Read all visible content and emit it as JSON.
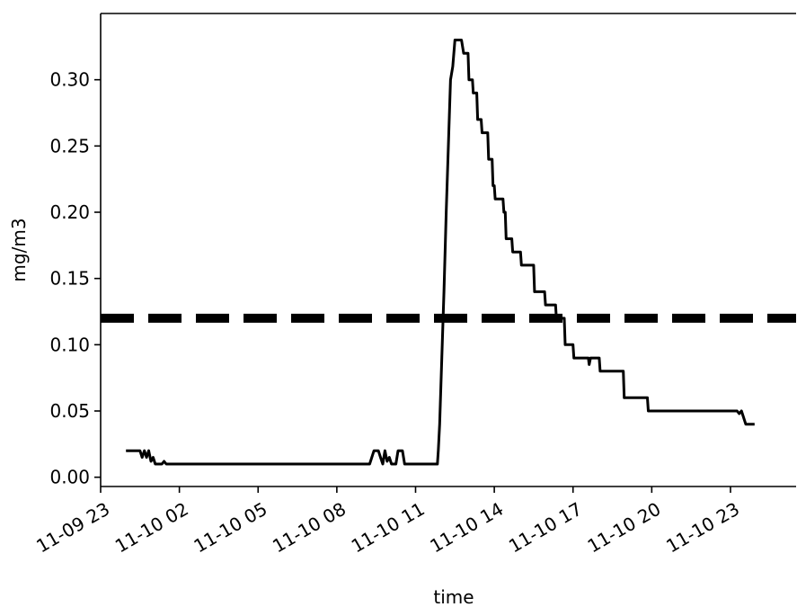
{
  "chart_data": {
    "type": "line",
    "title": "",
    "xlabel": "time",
    "ylabel": "mg/m3",
    "grid": false,
    "legend": "none",
    "x_start": "2023-11-09 23:00",
    "xlim": [
      "11-09 23",
      "11-10 25:30"
    ],
    "ylim": [
      -0.007,
      0.35
    ],
    "x_ticks": [
      "11-09 23",
      "11-10 02",
      "11-10 05",
      "11-10 08",
      "11-10 11",
      "11-10 14",
      "11-10 17",
      "11-10 20",
      "11-10 23"
    ],
    "y_ticks": [
      "0.00",
      "0.05",
      "0.10",
      "0.15",
      "0.20",
      "0.25",
      "0.30"
    ],
    "threshold": {
      "value": 0.12,
      "style": "dashed",
      "color": "#000000"
    },
    "series": [
      {
        "color": "#000000",
        "points": [
          [
            "11-09 23:58",
            0.02
          ],
          [
            "11-10 00:30",
            0.02
          ],
          [
            "11-10 00:35",
            0.015
          ],
          [
            "11-10 00:40",
            0.02
          ],
          [
            "11-10 00:45",
            0.015
          ],
          [
            "11-10 00:50",
            0.02
          ],
          [
            "11-10 00:55",
            0.012
          ],
          [
            "11-10 01:00",
            0.015
          ],
          [
            "11-10 01:05",
            0.01
          ],
          [
            "11-10 01:20",
            0.01
          ],
          [
            "11-10 01:25",
            0.012
          ],
          [
            "11-10 01:30",
            0.01
          ],
          [
            "11-10 09:15",
            0.01
          ],
          [
            "11-10 09:20",
            0.015
          ],
          [
            "11-10 09:25",
            0.02
          ],
          [
            "11-10 09:35",
            0.02
          ],
          [
            "11-10 09:40",
            0.015
          ],
          [
            "11-10 09:45",
            0.01
          ],
          [
            "11-10 09:50",
            0.02
          ],
          [
            "11-10 09:55",
            0.012
          ],
          [
            "11-10 10:00",
            0.015
          ],
          [
            "11-10 10:05",
            0.01
          ],
          [
            "11-10 10:15",
            0.01
          ],
          [
            "11-10 10:20",
            0.02
          ],
          [
            "11-10 10:30",
            0.02
          ],
          [
            "11-10 10:35",
            0.01
          ],
          [
            "11-10 11:50",
            0.01
          ],
          [
            "11-10 11:52",
            0.02
          ],
          [
            "11-10 11:55",
            0.04
          ],
          [
            "11-10 12:00",
            0.09
          ],
          [
            "11-10 12:05",
            0.14
          ],
          [
            "11-10 12:10",
            0.2
          ],
          [
            "11-10 12:15",
            0.25
          ],
          [
            "11-10 12:20",
            0.3
          ],
          [
            "11-10 12:25",
            0.31
          ],
          [
            "11-10 12:30",
            0.33
          ],
          [
            "11-10 12:45",
            0.33
          ],
          [
            "11-10 12:50",
            0.32
          ],
          [
            "11-10 13:00",
            0.32
          ],
          [
            "11-10 13:02",
            0.3
          ],
          [
            "11-10 13:10",
            0.3
          ],
          [
            "11-10 13:12",
            0.29
          ],
          [
            "11-10 13:20",
            0.29
          ],
          [
            "11-10 13:22",
            0.27
          ],
          [
            "11-10 13:30",
            0.27
          ],
          [
            "11-10 13:32",
            0.26
          ],
          [
            "11-10 13:45",
            0.26
          ],
          [
            "11-10 13:47",
            0.24
          ],
          [
            "11-10 13:55",
            0.24
          ],
          [
            "11-10 13:57",
            0.22
          ],
          [
            "11-10 14:00",
            0.22
          ],
          [
            "11-10 14:02",
            0.21
          ],
          [
            "11-10 14:20",
            0.21
          ],
          [
            "11-10 14:22",
            0.2
          ],
          [
            "11-10 14:25",
            0.2
          ],
          [
            "11-10 14:27",
            0.18
          ],
          [
            "11-10 14:40",
            0.18
          ],
          [
            "11-10 14:42",
            0.17
          ],
          [
            "11-10 15:00",
            0.17
          ],
          [
            "11-10 15:02",
            0.16
          ],
          [
            "11-10 15:30",
            0.16
          ],
          [
            "11-10 15:32",
            0.14
          ],
          [
            "11-10 15:55",
            0.14
          ],
          [
            "11-10 15:57",
            0.13
          ],
          [
            "11-10 16:20",
            0.13
          ],
          [
            "11-10 16:22",
            0.12
          ],
          [
            "11-10 16:40",
            0.12
          ],
          [
            "11-10 16:42",
            0.1
          ],
          [
            "11-10 17:00",
            0.1
          ],
          [
            "11-10 17:02",
            0.09
          ],
          [
            "11-10 17:35",
            0.09
          ],
          [
            "11-10 17:37",
            0.085
          ],
          [
            "11-10 17:40",
            0.09
          ],
          [
            "11-10 18:00",
            0.09
          ],
          [
            "11-10 18:02",
            0.08
          ],
          [
            "11-10 18:55",
            0.08
          ],
          [
            "11-10 18:57",
            0.06
          ],
          [
            "11-10 19:50",
            0.06
          ],
          [
            "11-10 19:52",
            0.05
          ],
          [
            "11-10 23:15",
            0.05
          ],
          [
            "11-10 23:20",
            0.048
          ],
          [
            "11-10 23:25",
            0.05
          ],
          [
            "11-10 23:30",
            0.045
          ],
          [
            "11-10 23:35",
            0.04
          ],
          [
            "11-10 23:55",
            0.04
          ]
        ]
      }
    ]
  }
}
